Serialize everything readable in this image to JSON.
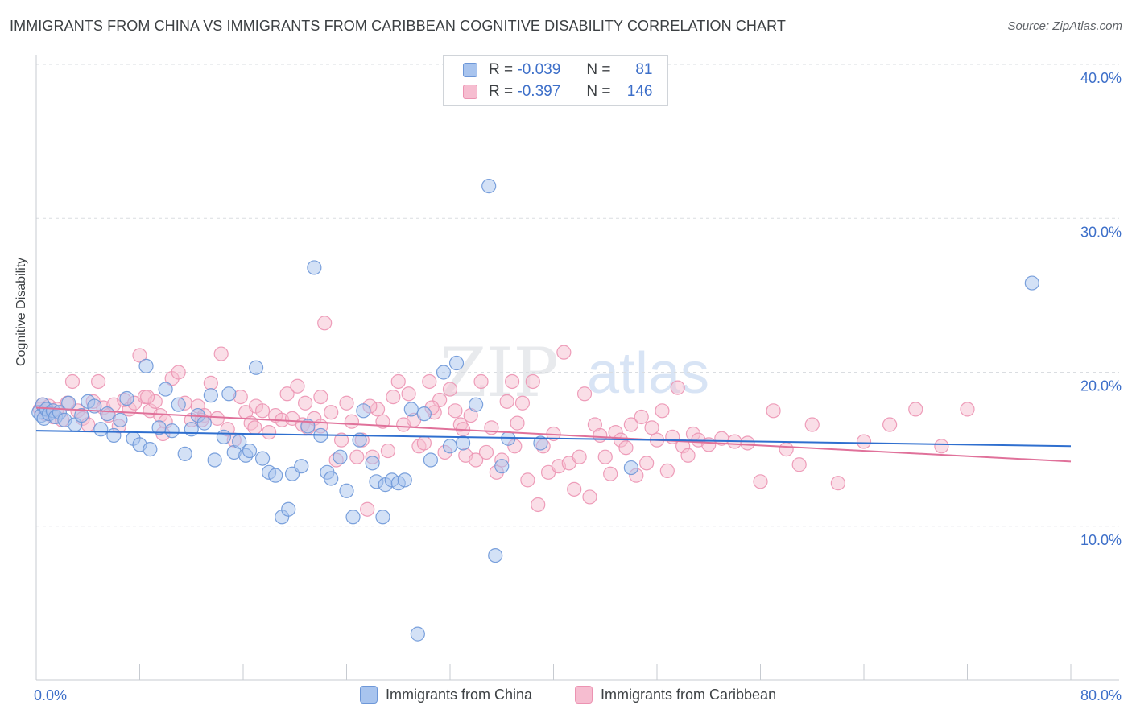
{
  "title": "IMMIGRANTS FROM CHINA VS IMMIGRANTS FROM CARIBBEAN COGNITIVE DISABILITY CORRELATION CHART",
  "source": "Source: ZipAtlas.com",
  "watermark": {
    "zip": "ZIP",
    "atlas": "atlas"
  },
  "legend": {
    "china": {
      "r_label": "R =",
      "r_value": "-0.039",
      "n_label": "N =",
      "n_value": "81"
    },
    "caribbean": {
      "r_label": "R =",
      "r_value": "-0.397",
      "n_label": "N =",
      "n_value": "146"
    }
  },
  "colors": {
    "china_fill": "#a8c4ee",
    "china_stroke": "#6d97d8",
    "china_line": "#2f6fcf",
    "caribbean_fill": "#f6bdd0",
    "caribbean_stroke": "#ec93b2",
    "caribbean_line": "#e0719a",
    "axis_text": "#3d6fc9",
    "grid": "#dadde1"
  },
  "chart_data": {
    "type": "scatter",
    "title": "IMMIGRANTS FROM CHINA VS IMMIGRANTS FROM CARIBBEAN COGNITIVE DISABILITY CORRELATION CHART",
    "xlabel": "",
    "ylabel": "Cognitive Disability",
    "xlim": [
      0,
      80
    ],
    "ylim": [
      0,
      40
    ],
    "x_tick_labels": [
      "0.0%",
      "80.0%"
    ],
    "y_ticks": [
      10,
      20,
      30,
      40
    ],
    "y_tick_labels": [
      "10.0%",
      "20.0%",
      "30.0%",
      "40.0%"
    ],
    "series": [
      {
        "name": "Immigrants from China",
        "trend": {
          "x": [
            0,
            80
          ],
          "y": [
            16.2,
            15.2
          ]
        },
        "points": [
          [
            0.2,
            17.4
          ],
          [
            0.4,
            17.2
          ],
          [
            0.5,
            17.9
          ],
          [
            0.6,
            17.0
          ],
          [
            0.8,
            17.6
          ],
          [
            1.0,
            17.3
          ],
          [
            1.3,
            17.5
          ],
          [
            1.5,
            17.1
          ],
          [
            1.8,
            17.4
          ],
          [
            2.2,
            16.9
          ],
          [
            2.5,
            18.0
          ],
          [
            3.0,
            16.6
          ],
          [
            3.5,
            17.2
          ],
          [
            4.0,
            18.1
          ],
          [
            4.5,
            17.8
          ],
          [
            5.0,
            16.3
          ],
          [
            5.5,
            17.3
          ],
          [
            6.0,
            15.9
          ],
          [
            6.5,
            16.9
          ],
          [
            7.0,
            18.3
          ],
          [
            7.5,
            15.7
          ],
          [
            8.0,
            15.3
          ],
          [
            8.5,
            20.4
          ],
          [
            8.8,
            15.0
          ],
          [
            9.5,
            16.4
          ],
          [
            10.0,
            18.9
          ],
          [
            10.5,
            16.2
          ],
          [
            11.0,
            17.9
          ],
          [
            11.5,
            14.7
          ],
          [
            12.0,
            16.3
          ],
          [
            12.5,
            17.2
          ],
          [
            13.0,
            16.7
          ],
          [
            13.5,
            18.5
          ],
          [
            13.8,
            14.3
          ],
          [
            14.5,
            15.8
          ],
          [
            14.9,
            18.6
          ],
          [
            15.3,
            14.8
          ],
          [
            15.7,
            15.5
          ],
          [
            16.2,
            14.6
          ],
          [
            16.5,
            14.9
          ],
          [
            17.0,
            20.3
          ],
          [
            17.5,
            14.4
          ],
          [
            18.0,
            13.5
          ],
          [
            18.5,
            13.3
          ],
          [
            19.0,
            10.6
          ],
          [
            19.5,
            11.1
          ],
          [
            19.8,
            13.4
          ],
          [
            20.5,
            13.9
          ],
          [
            21.0,
            16.5
          ],
          [
            21.5,
            26.8
          ],
          [
            22.0,
            15.9
          ],
          [
            22.5,
            13.5
          ],
          [
            22.8,
            13.1
          ],
          [
            23.5,
            14.5
          ],
          [
            24.0,
            12.3
          ],
          [
            24.5,
            10.6
          ],
          [
            25.0,
            15.6
          ],
          [
            25.3,
            17.5
          ],
          [
            26.0,
            14.1
          ],
          [
            26.3,
            12.9
          ],
          [
            26.8,
            10.6
          ],
          [
            27.0,
            12.7
          ],
          [
            27.5,
            13.0
          ],
          [
            28.0,
            12.8
          ],
          [
            28.5,
            13.0
          ],
          [
            29.5,
            3.0
          ],
          [
            30.5,
            14.3
          ],
          [
            31.5,
            20.0
          ],
          [
            32.0,
            15.2
          ],
          [
            32.5,
            20.6
          ],
          [
            34.0,
            17.9
          ],
          [
            35.0,
            32.1
          ],
          [
            35.5,
            8.1
          ],
          [
            36.0,
            13.9
          ],
          [
            39.0,
            15.4
          ],
          [
            46.0,
            13.8
          ],
          [
            77.0,
            25.8
          ],
          [
            29.0,
            17.6
          ],
          [
            30.0,
            17.3
          ],
          [
            36.5,
            15.7
          ],
          [
            33.0,
            15.4
          ]
        ]
      },
      {
        "name": "Immigrants from Caribbean",
        "trend": {
          "x": [
            0,
            80
          ],
          "y": [
            17.7,
            14.2
          ]
        },
        "points": [
          [
            0.3,
            17.6
          ],
          [
            0.5,
            17.9
          ],
          [
            0.7,
            17.3
          ],
          [
            1.0,
            17.8
          ],
          [
            1.3,
            17.1
          ],
          [
            1.6,
            17.6
          ],
          [
            2.0,
            16.9
          ],
          [
            2.4,
            18.0
          ],
          [
            2.8,
            19.4
          ],
          [
            3.2,
            17.5
          ],
          [
            3.6,
            17.0
          ],
          [
            4.0,
            16.6
          ],
          [
            4.4,
            18.1
          ],
          [
            4.8,
            19.4
          ],
          [
            5.2,
            17.7
          ],
          [
            5.6,
            17.2
          ],
          [
            6.0,
            17.9
          ],
          [
            6.4,
            16.5
          ],
          [
            6.8,
            18.2
          ],
          [
            7.2,
            17.6
          ],
          [
            7.6,
            18.0
          ],
          [
            8.0,
            21.1
          ],
          [
            8.4,
            18.4
          ],
          [
            8.8,
            17.5
          ],
          [
            9.2,
            18.1
          ],
          [
            9.6,
            17.2
          ],
          [
            10.0,
            16.8
          ],
          [
            10.5,
            19.6
          ],
          [
            11.0,
            20.0
          ],
          [
            11.5,
            18.0
          ],
          [
            12.0,
            16.9
          ],
          [
            12.5,
            17.8
          ],
          [
            13.0,
            17.2
          ],
          [
            13.5,
            19.3
          ],
          [
            14.0,
            17.0
          ],
          [
            14.3,
            21.2
          ],
          [
            14.8,
            16.3
          ],
          [
            15.3,
            15.6
          ],
          [
            15.8,
            18.4
          ],
          [
            16.2,
            17.4
          ],
          [
            16.6,
            16.7
          ],
          [
            17.0,
            17.8
          ],
          [
            17.5,
            17.5
          ],
          [
            18.0,
            16.1
          ],
          [
            18.5,
            17.2
          ],
          [
            19.0,
            16.9
          ],
          [
            19.4,
            18.6
          ],
          [
            19.8,
            17.0
          ],
          [
            20.2,
            19.1
          ],
          [
            20.6,
            16.6
          ],
          [
            21.0,
            16.4
          ],
          [
            21.5,
            17.0
          ],
          [
            22.0,
            18.4
          ],
          [
            22.3,
            23.2
          ],
          [
            22.8,
            17.4
          ],
          [
            23.2,
            14.3
          ],
          [
            23.6,
            15.6
          ],
          [
            24.0,
            18.0
          ],
          [
            24.4,
            16.8
          ],
          [
            24.8,
            14.5
          ],
          [
            25.2,
            15.6
          ],
          [
            25.6,
            11.1
          ],
          [
            26.0,
            14.5
          ],
          [
            26.4,
            17.6
          ],
          [
            26.8,
            16.8
          ],
          [
            27.2,
            14.9
          ],
          [
            27.6,
            18.4
          ],
          [
            28.0,
            19.4
          ],
          [
            28.4,
            16.6
          ],
          [
            28.8,
            18.6
          ],
          [
            29.2,
            16.9
          ],
          [
            29.6,
            15.2
          ],
          [
            30.0,
            15.4
          ],
          [
            30.4,
            19.4
          ],
          [
            30.8,
            17.4
          ],
          [
            31.2,
            18.2
          ],
          [
            31.6,
            14.8
          ],
          [
            32.0,
            18.9
          ],
          [
            32.4,
            17.5
          ],
          [
            32.8,
            16.6
          ],
          [
            33.2,
            14.6
          ],
          [
            33.6,
            17.2
          ],
          [
            34.0,
            14.3
          ],
          [
            34.4,
            19.4
          ],
          [
            34.8,
            14.8
          ],
          [
            35.2,
            16.4
          ],
          [
            35.6,
            13.5
          ],
          [
            36.0,
            14.3
          ],
          [
            36.4,
            18.1
          ],
          [
            36.8,
            19.4
          ],
          [
            37.2,
            16.7
          ],
          [
            37.6,
            18.0
          ],
          [
            38.0,
            13.0
          ],
          [
            38.4,
            19.4
          ],
          [
            38.8,
            11.4
          ],
          [
            39.2,
            15.2
          ],
          [
            39.6,
            13.5
          ],
          [
            40.0,
            16.0
          ],
          [
            40.4,
            13.9
          ],
          [
            40.8,
            21.3
          ],
          [
            41.2,
            14.1
          ],
          [
            41.6,
            12.4
          ],
          [
            42.0,
            14.5
          ],
          [
            42.4,
            18.6
          ],
          [
            42.8,
            11.9
          ],
          [
            43.2,
            16.6
          ],
          [
            43.6,
            15.9
          ],
          [
            44.0,
            14.5
          ],
          [
            44.4,
            13.4
          ],
          [
            44.8,
            16.1
          ],
          [
            45.2,
            15.6
          ],
          [
            45.6,
            15.1
          ],
          [
            46.0,
            16.6
          ],
          [
            46.4,
            13.3
          ],
          [
            46.8,
            17.1
          ],
          [
            47.2,
            14.1
          ],
          [
            47.6,
            16.4
          ],
          [
            48.0,
            15.6
          ],
          [
            48.4,
            17.5
          ],
          [
            48.8,
            13.6
          ],
          [
            49.2,
            15.8
          ],
          [
            49.6,
            19.0
          ],
          [
            50.0,
            15.2
          ],
          [
            50.4,
            14.6
          ],
          [
            50.8,
            16.0
          ],
          [
            51.2,
            15.6
          ],
          [
            52.0,
            15.3
          ],
          [
            53.0,
            15.7
          ],
          [
            54.0,
            15.5
          ],
          [
            55.0,
            15.4
          ],
          [
            56.0,
            12.9
          ],
          [
            57.0,
            17.5
          ],
          [
            58.0,
            15.0
          ],
          [
            59.0,
            14.0
          ],
          [
            60.0,
            16.6
          ],
          [
            62.0,
            12.8
          ],
          [
            64.0,
            15.5
          ],
          [
            66.0,
            16.6
          ],
          [
            68.0,
            17.6
          ],
          [
            70.0,
            15.2
          ],
          [
            72.0,
            17.6
          ],
          [
            33.0,
            16.3
          ],
          [
            22.0,
            16.5
          ],
          [
            12.8,
            16.9
          ],
          [
            8.6,
            18.4
          ],
          [
            16.9,
            16.4
          ],
          [
            25.8,
            17.8
          ],
          [
            30.6,
            17.7
          ],
          [
            37.0,
            15.2
          ],
          [
            20.8,
            18.0
          ],
          [
            9.8,
            16.0
          ]
        ]
      }
    ]
  },
  "bottom_legend": {
    "china": "Immigrants from China",
    "caribbean": "Immigrants from Caribbean"
  }
}
